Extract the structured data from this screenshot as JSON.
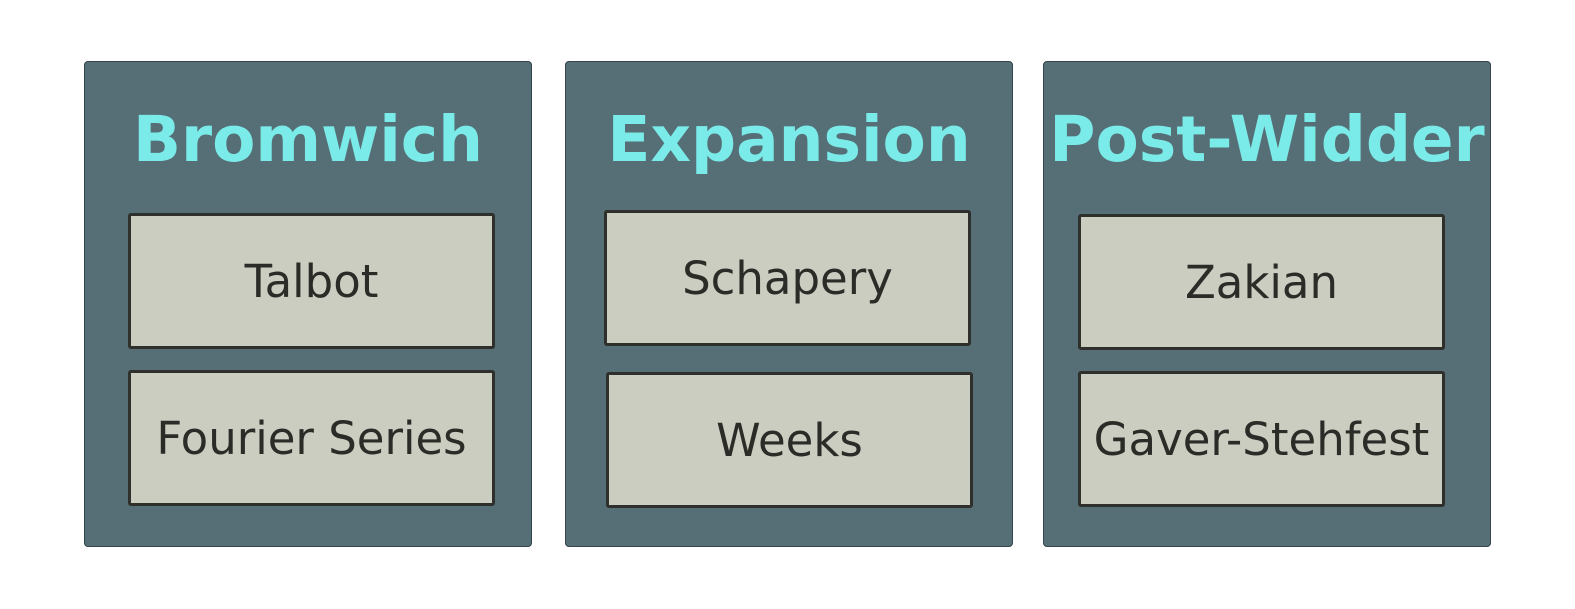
{
  "colors": {
    "panel_fill": "#566e75",
    "title_text": "#7aebe9",
    "item_fill": "#cbcdc0",
    "item_border": "#2f2f2c",
    "item_text": "#2b2b27"
  },
  "panels": [
    {
      "title": "Bromwich",
      "items": [
        "Talbot",
        "Fourier Series"
      ]
    },
    {
      "title": "Expansion",
      "items": [
        "Schapery",
        "Weeks"
      ]
    },
    {
      "title": "Post-Widder",
      "items": [
        "Zakian",
        "Gaver-Stehfest"
      ]
    }
  ]
}
